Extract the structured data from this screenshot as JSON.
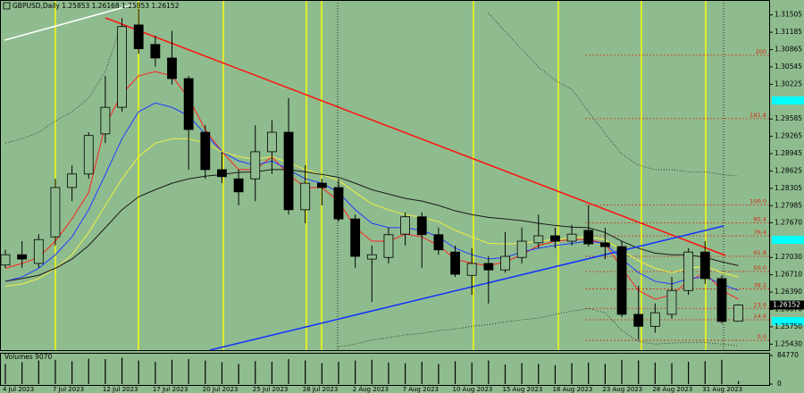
{
  "chart_data": {
    "type": "candlestick",
    "title": "GBPUSD,Daily  1.25853 1.26168 1.25853 1.26152",
    "categories": [
      "4 Jul 2023",
      null,
      null,
      "7 Jul 2023",
      null,
      null,
      "12 Jul 2023",
      null,
      null,
      "17 Jul 2023",
      null,
      null,
      "20 Jul 2023",
      null,
      null,
      "25 Jul 2023",
      null,
      null,
      "28 Jul 2023",
      null,
      null,
      "2 Aug 2023",
      null,
      null,
      "7 Aug 2023",
      null,
      null,
      "10 Aug 2023",
      null,
      null,
      "15 Aug 2023",
      null,
      null,
      "18 Aug 2023",
      null,
      null,
      "23 Aug 2023",
      null,
      null,
      "28 Aug 2023",
      null,
      null,
      "31 Aug 2023",
      null,
      null
    ],
    "open": [
      1.2689,
      1.2708,
      1.2692,
      1.2741,
      1.2832,
      1.2857,
      1.2931,
      1.298,
      1.3132,
      1.3096,
      1.3071,
      1.3033,
      1.2934,
      1.2865,
      1.2848,
      1.2848,
      1.2898,
      1.2934,
      1.2791,
      1.284,
      1.2832,
      1.2774,
      1.27,
      1.2703,
      1.2746,
      1.2778,
      1.2745,
      1.2713,
      1.267,
      1.2692,
      1.268,
      1.2703,
      1.273,
      1.2743,
      1.2733,
      1.2753,
      1.273,
      1.2723,
      1.2598,
      1.2576,
      1.2598,
      1.2642,
      1.2713,
      1.2664,
      1.25853
    ],
    "high": [
      1.2717,
      1.2733,
      1.2746,
      1.2848,
      1.2873,
      1.2934,
      1.3038,
      1.3145,
      1.3162,
      1.3112,
      1.3121,
      1.3038,
      1.2947,
      1.2898,
      1.2865,
      1.2947,
      1.2956,
      1.2997,
      1.2873,
      1.2848,
      1.2848,
      1.2782,
      1.2725,
      1.2758,
      1.2786,
      1.2786,
      1.2758,
      1.2725,
      1.272,
      1.2705,
      1.275,
      1.2758,
      1.2782,
      1.2758,
      1.2763,
      1.2799,
      1.2758,
      1.2733,
      1.2651,
      1.2618,
      1.2667,
      1.272,
      1.2733,
      1.267,
      1.26168
    ],
    "low": [
      1.2684,
      1.2684,
      1.2684,
      1.2725,
      1.2807,
      1.2848,
      1.2914,
      1.2972,
      1.3079,
      1.3055,
      1.3022,
      1.2865,
      1.2848,
      1.284,
      1.2799,
      1.2807,
      1.2857,
      1.2782,
      1.2766,
      1.2799,
      1.2769,
      1.2684,
      1.2621,
      1.2692,
      1.2725,
      1.2684,
      1.2708,
      1.2667,
      1.2634,
      1.2618,
      1.2675,
      1.2692,
      1.272,
      1.272,
      1.2725,
      1.2723,
      1.27,
      1.2593,
      1.2551,
      1.2564,
      1.259,
      1.2634,
      1.2654,
      1.2581,
      1.25853
    ],
    "close": [
      1.2708,
      1.27,
      1.2736,
      1.2832,
      1.2857,
      1.2928,
      1.298,
      1.3129,
      1.3088,
      1.3071,
      1.3033,
      1.2939,
      1.2865,
      1.2852,
      1.2824,
      1.2898,
      1.2934,
      1.2791,
      1.284,
      1.2832,
      1.2774,
      1.2705,
      1.2708,
      1.2745,
      1.2778,
      1.2745,
      1.2717,
      1.2672,
      1.2692,
      1.268,
      1.2705,
      1.2733,
      1.2743,
      1.2733,
      1.2746,
      1.2728,
      1.2723,
      1.2598,
      1.2576,
      1.2601,
      1.2642,
      1.2713,
      1.2664,
      1.2585,
      1.26152
    ],
    "bull_color": "#8fbc8f",
    "bear_color": "#000000",
    "ylim": [
      1.2532,
      1.3178
    ],
    "yticks": [
      1.31505,
      1.31185,
      1.30865,
      1.30545,
      1.30225,
      1.29585,
      1.29265,
      1.28945,
      1.28625,
      1.28305,
      1.27985,
      {
        "value": 1.2767,
        "label": "1.27670"
      },
      {
        "value": 1.2703,
        "label": "1.27030"
      },
      {
        "value": 1.2671,
        "label": "1.26710"
      },
      {
        "value": 1.2639,
        "label": "1.26390"
      },
      {
        "value": 1.2607,
        "label": "1.26070"
      },
      {
        "value": 1.2575,
        "label": "1.25750"
      },
      {
        "value": 1.2543,
        "label": "1.25430"
      }
    ],
    "last_price": {
      "value": 1.26152,
      "label": "1.26152"
    },
    "overlays": [
      {
        "color": "#ff2020",
        "dash": false,
        "values": [
          1.2683,
          1.2692,
          1.2703,
          1.2733,
          1.2774,
          1.2823,
          1.2947,
          1.3005,
          1.3038,
          1.3046,
          1.3038,
          1.2997,
          1.2939,
          1.2898,
          1.2865,
          1.2865,
          1.2889,
          1.2856,
          1.2832,
          1.2832,
          1.2807,
          1.2758,
          1.2733,
          1.2733,
          1.2746,
          1.2741,
          1.2725,
          1.27,
          1.2692,
          1.2688,
          1.2695,
          1.2708,
          1.2725,
          1.2733,
          1.2736,
          1.2736,
          1.2729,
          1.2683,
          1.2642,
          1.2626,
          1.2634,
          1.2659,
          1.2675,
          1.2642,
          1.2626
        ]
      },
      {
        "color": "#1e3cff",
        "dash": false,
        "values": [
          1.2659,
          1.2667,
          1.2683,
          1.2708,
          1.2741,
          1.2791,
          1.2856,
          1.2922,
          1.2972,
          1.2988,
          1.298,
          1.2964,
          1.2931,
          1.2898,
          1.2881,
          1.2873,
          1.2881,
          1.2865,
          1.2848,
          1.284,
          1.2823,
          1.2791,
          1.2766,
          1.2758,
          1.2758,
          1.2753,
          1.2741,
          1.272,
          1.2708,
          1.27,
          1.2703,
          1.2713,
          1.272,
          1.2725,
          1.2729,
          1.2733,
          1.2729,
          1.27,
          1.2675,
          1.2659,
          1.2654,
          1.2664,
          1.2667,
          1.2654,
          1.2642
        ]
      },
      {
        "color": "#f0f040",
        "dash": false,
        "values": [
          1.265,
          1.2654,
          1.2664,
          1.2683,
          1.2708,
          1.2749,
          1.2799,
          1.2848,
          1.2889,
          1.2914,
          1.2922,
          1.2922,
          1.2914,
          1.2898,
          1.2889,
          1.2884,
          1.2889,
          1.2878,
          1.2865,
          1.2856,
          1.2845,
          1.2823,
          1.2802,
          1.2791,
          1.2782,
          1.2777,
          1.2769,
          1.2753,
          1.2741,
          1.2729,
          1.2728,
          1.2729,
          1.2733,
          1.2736,
          1.2739,
          1.2741,
          1.2736,
          1.2716,
          1.2697,
          1.2683,
          1.2675,
          1.2683,
          1.2687,
          1.2675,
          1.2667
        ]
      },
      {
        "color": "#1a1a1a",
        "dash": false,
        "values": [
          1.2659,
          1.2664,
          1.267,
          1.2683,
          1.27,
          1.2725,
          1.2758,
          1.2791,
          1.2815,
          1.2828,
          1.284,
          1.2848,
          1.2853,
          1.2856,
          1.286,
          1.2861,
          1.2865,
          1.2865,
          1.2861,
          1.2856,
          1.2851,
          1.284,
          1.2828,
          1.282,
          1.2812,
          1.2807,
          1.2799,
          1.2789,
          1.2782,
          1.2777,
          1.2774,
          1.2771,
          1.2766,
          1.2762,
          1.2759,
          1.2758,
          1.2749,
          1.2733,
          1.272,
          1.2711,
          1.2708,
          1.2708,
          1.2703,
          1.2695,
          1.2688
        ]
      },
      {
        "color": "#1a1a1a",
        "dash": true,
        "values": [
          1.2914,
          1.2922,
          1.2934,
          1.2955,
          1.2972,
          1.2997,
          1.3046,
          1.3137,
          null,
          null,
          null,
          null,
          null,
          null,
          null,
          null,
          null,
          null,
          null,
          null,
          null,
          null,
          null,
          null,
          null,
          null,
          null,
          null,
          null,
          1.3153,
          1.312,
          1.3087,
          1.3054,
          1.303,
          1.3013,
          1.2972,
          1.2931,
          1.2894,
          1.2873,
          1.2865,
          1.2865,
          1.2861,
          1.2861,
          1.2856,
          1.2853
        ]
      },
      {
        "color": "#1a1a1a",
        "dash": true,
        "values": [
          null,
          null,
          null,
          null,
          null,
          null,
          null,
          null,
          null,
          null,
          null,
          null,
          null,
          null,
          null,
          null,
          null,
          null,
          null,
          null,
          1.2538,
          1.2543,
          1.2551,
          1.2555,
          1.256,
          1.2563,
          1.2568,
          1.2571,
          1.2576,
          1.2579,
          1.2584,
          1.2588,
          1.2591,
          1.2598,
          1.2604,
          1.2609,
          1.2601,
          1.2568,
          1.2548,
          1.2543,
          1.2545,
          1.2546,
          1.2546,
          1.2543,
          1.254
        ]
      }
    ],
    "fib_color": "#d42a10",
    "fib_levels": [
      {
        "value": 1.3076,
        "label": "200"
      },
      {
        "value": 1.2959,
        "label": "161.8"
      },
      {
        "value": 1.28,
        "label": "100.0"
      },
      {
        "value": 1.2767,
        "label": "85.4"
      },
      {
        "value": 1.2743,
        "label": "76.4"
      },
      {
        "value": 1.2705,
        "label": "61.8"
      },
      {
        "value": 1.2677,
        "label": "50.0"
      },
      {
        "value": 1.2645,
        "label": "38.2"
      },
      {
        "value": 1.2609,
        "label": "23.6"
      },
      {
        "value": 1.2588,
        "label": "14.6"
      },
      {
        "value": 1.255,
        "label": "0.0"
      }
    ],
    "volume": {
      "label": "Volumes 9070",
      "values": [
        60000,
        65000,
        70000,
        72000,
        68000,
        75000,
        74000,
        78000,
        70000,
        66000,
        72000,
        74000,
        70000,
        65000,
        60000,
        68000,
        66000,
        74000,
        70000,
        62000,
        66000,
        70000,
        72000,
        64000,
        62000,
        66000,
        60000,
        68000,
        64000,
        70000,
        58000,
        62000,
        60000,
        56000,
        62000,
        64000,
        60000,
        72000,
        70000,
        64000,
        62000,
        66000,
        68000,
        72000,
        9070
      ],
      "vlim": [
        0,
        84770
      ],
      "vticks": [
        84770,
        0
      ]
    }
  }
}
